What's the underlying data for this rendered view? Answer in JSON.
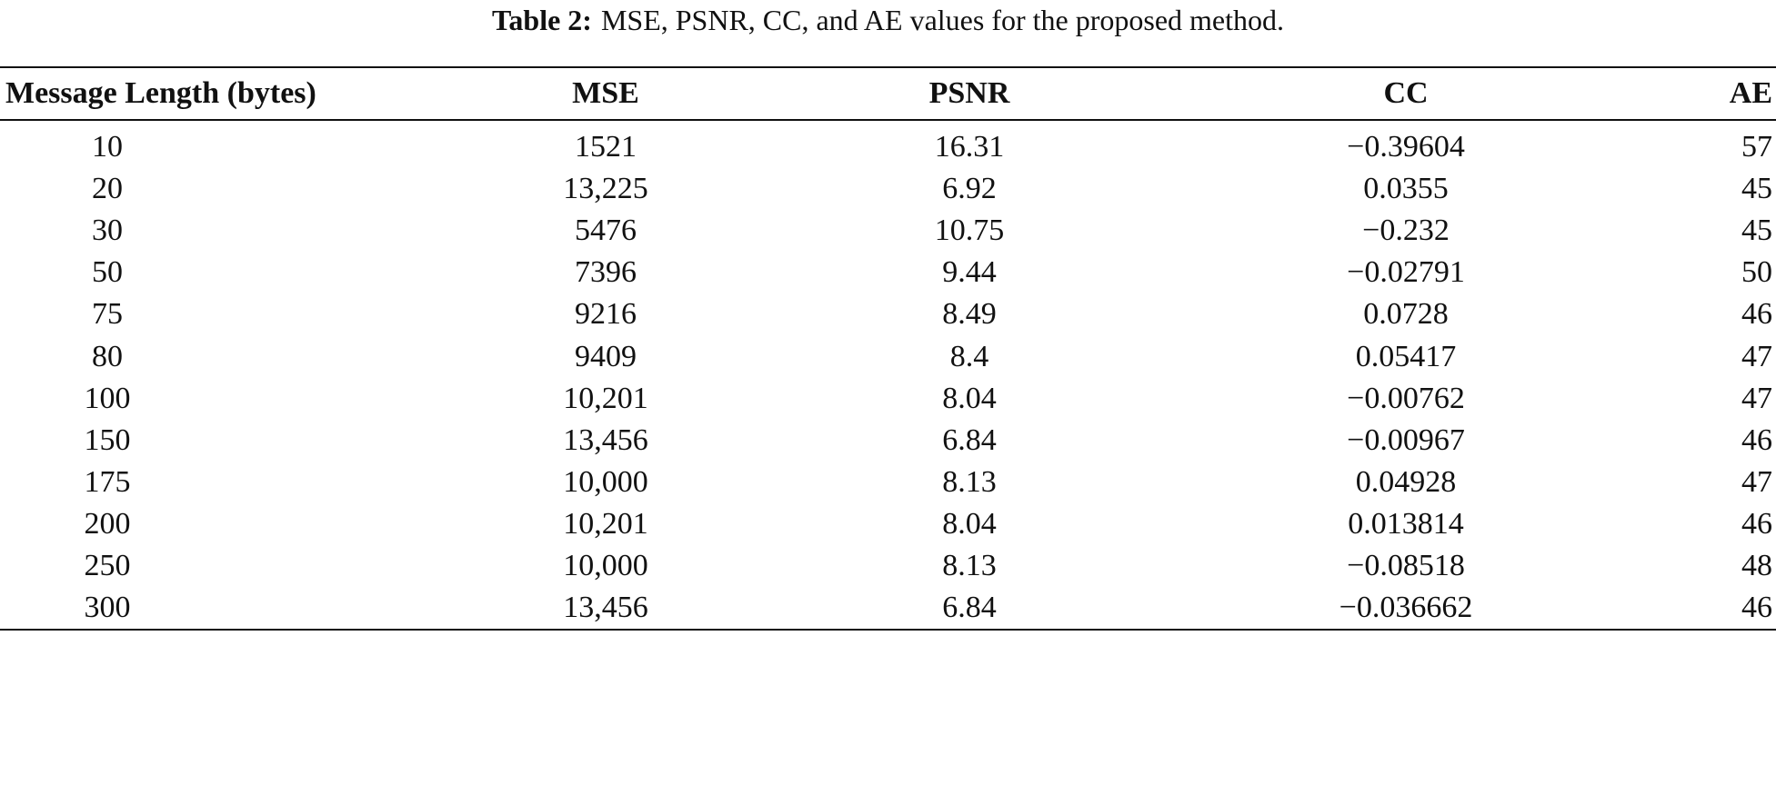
{
  "caption": {
    "label": "Table 2:",
    "text": "MSE, PSNR, CC, and AE values for the proposed method."
  },
  "table": {
    "headers": [
      "Message Length (bytes)",
      "MSE",
      "PSNR",
      "CC",
      "AE"
    ],
    "rows": [
      [
        "10",
        "1521",
        "16.31",
        "−0.39604",
        "57"
      ],
      [
        "20",
        "13,225",
        "6.92",
        "0.0355",
        "45"
      ],
      [
        "30",
        "5476",
        "10.75",
        "−0.232",
        "45"
      ],
      [
        "50",
        "7396",
        "9.44",
        "−0.02791",
        "50"
      ],
      [
        "75",
        "9216",
        "8.49",
        "0.0728",
        "46"
      ],
      [
        "80",
        "9409",
        "8.4",
        "0.05417",
        "47"
      ],
      [
        "100",
        "10,201",
        "8.04",
        "−0.00762",
        "47"
      ],
      [
        "150",
        "13,456",
        "6.84",
        "−0.00967",
        "46"
      ],
      [
        "175",
        "10,000",
        "8.13",
        "0.04928",
        "47"
      ],
      [
        "200",
        "10,201",
        "8.04",
        "0.013814",
        "46"
      ],
      [
        "250",
        "10,000",
        "8.13",
        "−0.08518",
        "48"
      ],
      [
        "300",
        "13,456",
        "6.84",
        "−0.036662",
        "46"
      ]
    ]
  }
}
